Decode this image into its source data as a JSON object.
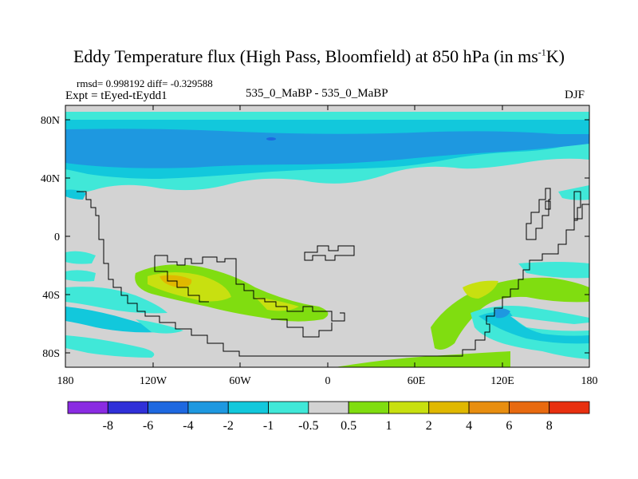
{
  "title_main": "Eddy Temperature flux (High Pass, Bloomfield) at 850 hPa (in ms",
  "title_sup": "-1",
  "title_end": "K)",
  "stats": "rmsd= 0.998192 diff= -0.329588",
  "expt": "Expt = tEyed-tEydd1",
  "runs": "535_0_MaBP - 535_0_MaBP",
  "season": "DJF",
  "lat_labels": [
    "80N",
    "40N",
    "0",
    "40S",
    "80S"
  ],
  "lon_labels": [
    "180",
    "120W",
    "60W",
    "0",
    "60E",
    "120E",
    "180"
  ],
  "colorbar": {
    "colors": [
      "#8a2be2",
      "#3030d8",
      "#1e68e0",
      "#1e98e0",
      "#12c8dc",
      "#40e8d8",
      "#d3d3d3",
      "#80dd10",
      "#c8e010",
      "#e0b800",
      "#e88e10",
      "#e86a10",
      "#e83010"
    ],
    "labels": [
      "-8",
      "-6",
      "-4",
      "-2",
      "-1",
      "-0.5",
      "0.5",
      "1",
      "2",
      "4",
      "6",
      "8"
    ]
  },
  "colors": {
    "background": "#d3d3d3",
    "ocean_line": "#000000"
  }
}
